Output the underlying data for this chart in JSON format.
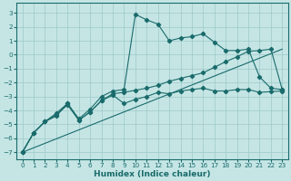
{
  "xlabel": "Humidex (Indice chaleur)",
  "bg_color": "#c5e5e5",
  "grid_color": "#9dc8c8",
  "line_color": "#1a6b6b",
  "xlim": [
    -0.5,
    23.5
  ],
  "ylim": [
    -7.5,
    3.7
  ],
  "yticks": [
    -7,
    -6,
    -5,
    -4,
    -3,
    -2,
    -1,
    0,
    1,
    2,
    3
  ],
  "xticks": [
    0,
    1,
    2,
    3,
    4,
    5,
    6,
    7,
    8,
    9,
    10,
    11,
    12,
    13,
    14,
    15,
    16,
    17,
    18,
    19,
    20,
    21,
    22,
    23
  ],
  "curve1_x": [
    0,
    1,
    2,
    3,
    4,
    5,
    6,
    7,
    8,
    9,
    10,
    11,
    12,
    13,
    14,
    15,
    16,
    17,
    18,
    19,
    20,
    21,
    22,
    23
  ],
  "curve1_y": [
    -7.0,
    -5.6,
    -4.8,
    -4.4,
    -3.5,
    -4.7,
    -4.1,
    -3.3,
    -2.9,
    -3.5,
    -3.2,
    -3.0,
    -2.7,
    -2.8,
    -2.6,
    -2.5,
    -2.4,
    -2.6,
    -2.6,
    -2.5,
    -2.5,
    -2.7,
    -2.65,
    -2.6
  ],
  "curve2_x": [
    0,
    1,
    2,
    3,
    4,
    5,
    6,
    7,
    8,
    9,
    10,
    11,
    12,
    13,
    14,
    15,
    16,
    17,
    18,
    19,
    20,
    21,
    22,
    23
  ],
  "curve2_y": [
    -7.0,
    -5.6,
    -4.8,
    -4.2,
    -3.5,
    -4.6,
    -3.9,
    -3.0,
    -2.6,
    -2.5,
    2.9,
    2.5,
    2.2,
    1.0,
    1.2,
    1.3,
    1.5,
    0.9,
    0.3,
    0.3,
    0.4,
    -1.6,
    -2.4,
    -2.5
  ],
  "curve3_x": [
    0,
    1,
    2,
    3,
    4,
    5,
    6,
    7,
    8,
    9,
    10,
    11,
    12,
    13,
    14,
    15,
    16,
    17,
    18,
    19,
    20,
    21,
    22,
    23
  ],
  "curve3_y": [
    -7.0,
    -5.6,
    -4.8,
    -4.3,
    -3.6,
    -4.7,
    -4.1,
    -3.3,
    -2.8,
    -2.7,
    -2.55,
    -2.4,
    -2.2,
    -1.9,
    -1.7,
    -1.5,
    -1.3,
    -0.9,
    -0.5,
    -0.15,
    0.25,
    0.3,
    0.4,
    -2.5
  ],
  "ref_line_x": [
    0,
    23
  ],
  "ref_line_y": [
    -7.0,
    0.4
  ]
}
